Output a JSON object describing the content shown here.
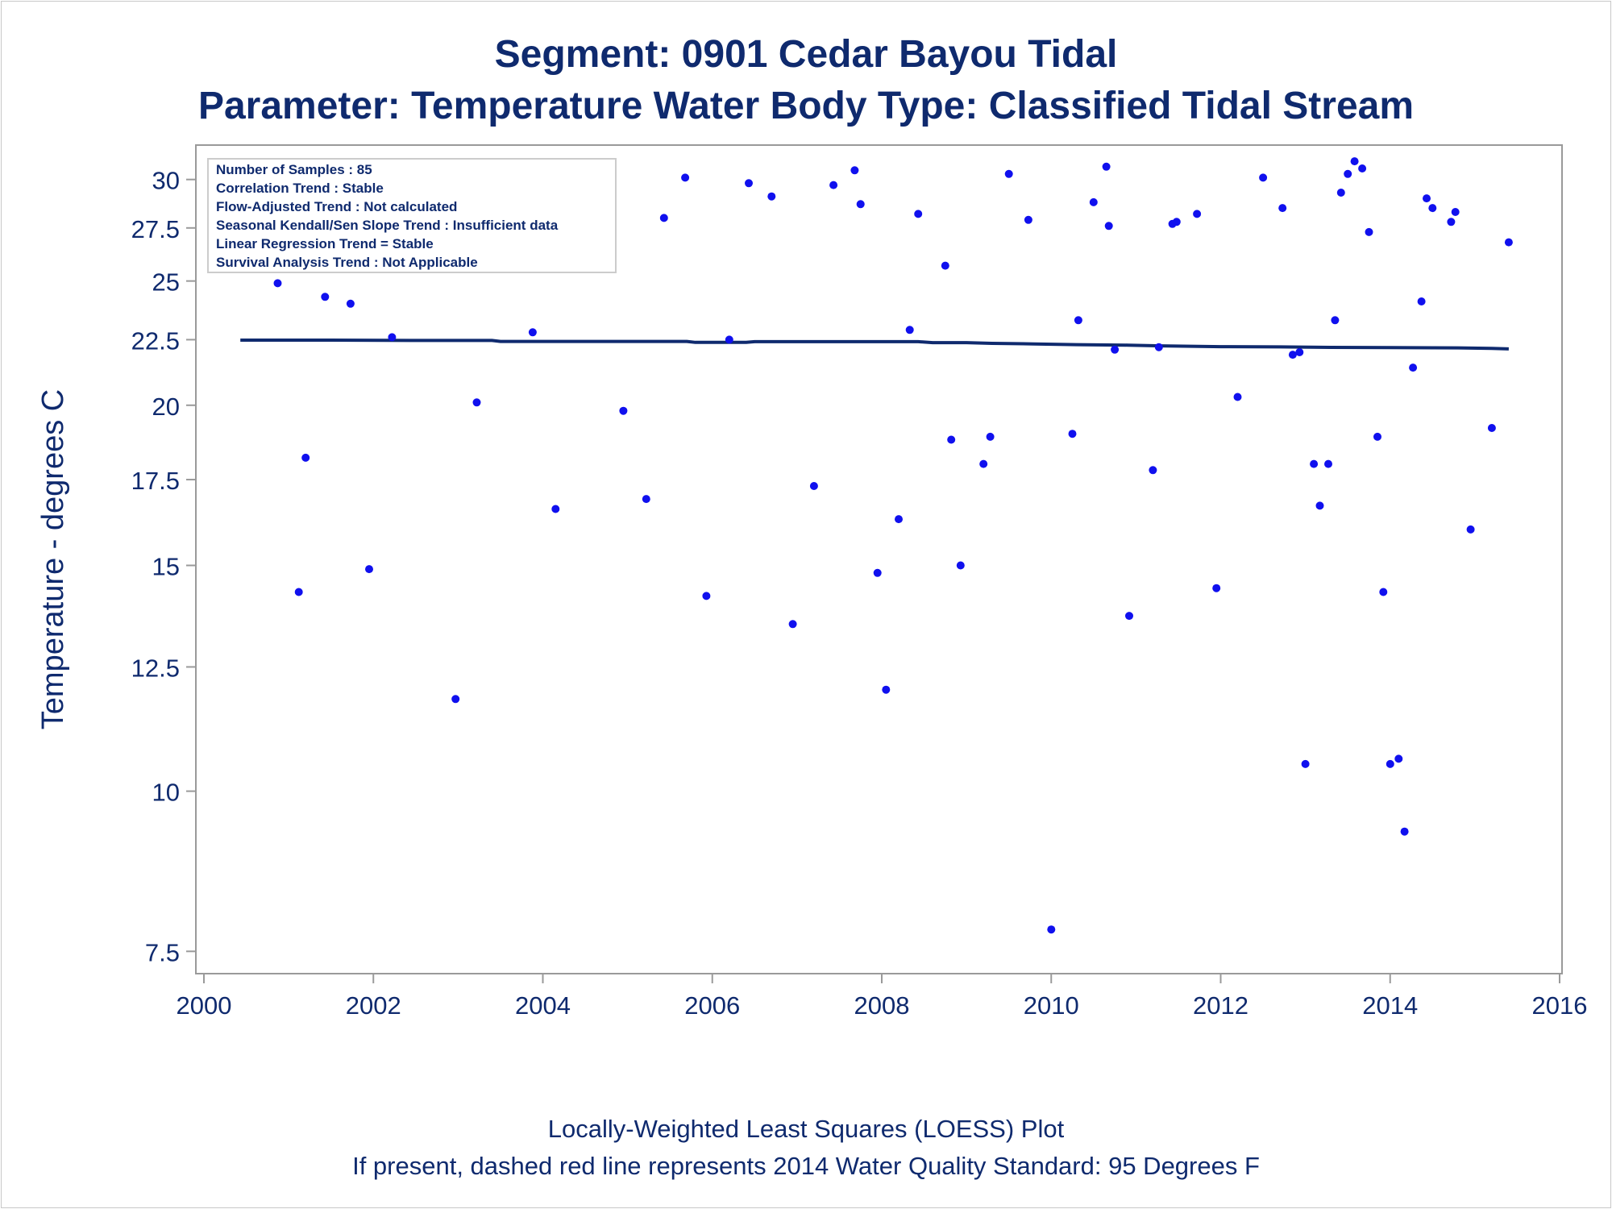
{
  "chart_data": {
    "type": "scatter",
    "title": "Segment: 0901  Cedar Bayou Tidal",
    "subtitle": "Parameter: Temperature   Water Body Type: Classified Tidal Stream",
    "xlabel": "",
    "ylabel": "Temperature - degrees C",
    "y_scale": "log",
    "xlim": [
      2000,
      2016
    ],
    "ylim": [
      7.3,
      31.5
    ],
    "x_ticks": [
      2000,
      2002,
      2004,
      2006,
      2008,
      2010,
      2012,
      2014,
      2016
    ],
    "y_ticks": [
      7.5,
      10,
      12.5,
      15,
      17.5,
      20,
      22.5,
      25,
      27.5,
      30
    ],
    "y_tick_labels": [
      "7.5",
      "10",
      "12.5",
      "15",
      "17.5",
      "20",
      "22.5",
      "25",
      "27.5",
      "30"
    ],
    "x_tick_labels": [
      "2000",
      "2002",
      "2004",
      "2006",
      "2008",
      "2010",
      "2012",
      "2014",
      "2016"
    ],
    "grid": false,
    "series": [
      {
        "role": "samples",
        "marker": "circle",
        "color": "#1010ee",
        "points": [
          [
            2000.43,
            27.6
          ],
          [
            2000.87,
            24.9
          ],
          [
            2001.12,
            14.3
          ],
          [
            2001.2,
            18.2
          ],
          [
            2001.43,
            24.3
          ],
          [
            2001.73,
            24.0
          ],
          [
            2001.95,
            14.9
          ],
          [
            2002.22,
            22.6
          ],
          [
            2002.45,
            29.2
          ],
          [
            2002.72,
            27.4
          ],
          [
            2002.97,
            11.8
          ],
          [
            2003.22,
            20.1
          ],
          [
            2003.43,
            28.4
          ],
          [
            2003.7,
            28.6
          ],
          [
            2003.88,
            22.8
          ],
          [
            2004.15,
            16.6
          ],
          [
            2004.72,
            29.7
          ],
          [
            2004.95,
            19.8
          ],
          [
            2005.22,
            16.9
          ],
          [
            2005.43,
            28.0
          ],
          [
            2005.68,
            30.1
          ],
          [
            2005.93,
            14.2
          ],
          [
            2006.2,
            22.5
          ],
          [
            2006.43,
            29.8
          ],
          [
            2006.7,
            29.1
          ],
          [
            2006.95,
            13.5
          ],
          [
            2007.2,
            17.3
          ],
          [
            2007.43,
            29.7
          ],
          [
            2007.68,
            30.5
          ],
          [
            2007.75,
            28.7
          ],
          [
            2007.95,
            14.8
          ],
          [
            2008.05,
            12.0
          ],
          [
            2008.2,
            16.3
          ],
          [
            2008.33,
            22.9
          ],
          [
            2008.43,
            28.2
          ],
          [
            2008.75,
            25.7
          ],
          [
            2008.82,
            18.8
          ],
          [
            2008.93,
            15.0
          ],
          [
            2009.2,
            18.0
          ],
          [
            2009.28,
            18.9
          ],
          [
            2009.5,
            30.3
          ],
          [
            2009.73,
            27.9
          ],
          [
            2010.0,
            7.8
          ],
          [
            2010.25,
            19.0
          ],
          [
            2010.32,
            23.3
          ],
          [
            2010.5,
            28.8
          ],
          [
            2010.65,
            30.7
          ],
          [
            2010.68,
            27.6
          ],
          [
            2010.75,
            22.1
          ],
          [
            2010.92,
            13.7
          ],
          [
            2011.2,
            17.8
          ],
          [
            2011.27,
            22.2
          ],
          [
            2011.43,
            27.7
          ],
          [
            2011.48,
            27.8
          ],
          [
            2011.72,
            28.2
          ],
          [
            2011.95,
            14.4
          ],
          [
            2012.2,
            20.3
          ],
          [
            2012.5,
            30.1
          ],
          [
            2012.73,
            28.5
          ],
          [
            2012.85,
            21.9
          ],
          [
            2012.93,
            22.0
          ],
          [
            2013.0,
            10.5
          ],
          [
            2013.1,
            18.0
          ],
          [
            2013.17,
            16.7
          ],
          [
            2013.27,
            18.0
          ],
          [
            2013.35,
            23.3
          ],
          [
            2013.42,
            29.3
          ],
          [
            2013.5,
            30.3
          ],
          [
            2013.58,
            31.0
          ],
          [
            2013.67,
            30.6
          ],
          [
            2013.75,
            27.3
          ],
          [
            2013.85,
            18.9
          ],
          [
            2013.92,
            14.3
          ],
          [
            2014.0,
            10.5
          ],
          [
            2014.1,
            10.6
          ],
          [
            2014.17,
            9.3
          ],
          [
            2014.27,
            21.4
          ],
          [
            2014.37,
            24.1
          ],
          [
            2014.43,
            29.0
          ],
          [
            2014.5,
            28.5
          ],
          [
            2014.72,
            27.8
          ],
          [
            2014.77,
            28.3
          ],
          [
            2014.95,
            16.0
          ],
          [
            2015.2,
            19.2
          ],
          [
            2015.4,
            26.8
          ]
        ]
      },
      {
        "role": "loess-fit",
        "line": "solid",
        "color": "#0f2a6e",
        "points": [
          [
            2000.43,
            22.48
          ],
          [
            2001.5,
            22.48
          ],
          [
            2002.5,
            22.47
          ],
          [
            2003.4,
            22.47
          ],
          [
            2003.5,
            22.43
          ],
          [
            2004.5,
            22.43
          ],
          [
            2005.7,
            22.43
          ],
          [
            2005.8,
            22.39
          ],
          [
            2006.4,
            22.39
          ],
          [
            2006.5,
            22.42
          ],
          [
            2007.5,
            22.42
          ],
          [
            2008.43,
            22.42
          ],
          [
            2008.6,
            22.38
          ],
          [
            2009.0,
            22.38
          ],
          [
            2009.3,
            22.35
          ],
          [
            2009.8,
            22.33
          ],
          [
            2010.3,
            22.3
          ],
          [
            2010.9,
            22.28
          ],
          [
            2011.3,
            22.25
          ],
          [
            2012.0,
            22.22
          ],
          [
            2012.7,
            22.21
          ],
          [
            2013.3,
            22.19
          ],
          [
            2014.0,
            22.18
          ],
          [
            2014.8,
            22.17
          ],
          [
            2015.2,
            22.15
          ],
          [
            2015.4,
            22.13
          ]
        ]
      }
    ],
    "legend_position": "top-left",
    "legend_lines": [
      "Number of Samples : 85",
      "Correlation Trend : Stable",
      "Flow-Adjusted Trend : Not calculated",
      "Seasonal Kendall/Sen Slope Trend : Insufficient data",
      "Linear Regression Trend = Stable",
      "Survival Analysis Trend : Not Applicable"
    ],
    "footnotes": [
      "Locally-Weighted Least Squares (LOESS) Plot",
      "If present, dashed red line represents 2014 Water Quality Standard: 95   Degrees F"
    ]
  }
}
